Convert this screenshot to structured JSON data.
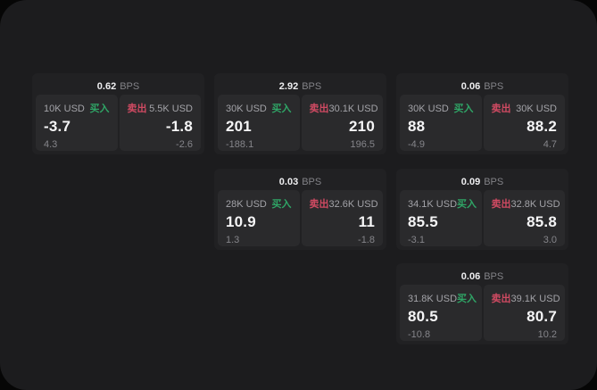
{
  "colors": {
    "buy_green": "#2fa566",
    "sell_red": "#cf4a62",
    "panel_background": "#1c1c1e",
    "card_background": "#212123",
    "tile_background": "#2a2a2c"
  },
  "cards": [
    {
      "bps_value": "0.62",
      "bps_unit": "BPS",
      "buy": {
        "amount": "10K USD",
        "label": "买入",
        "price": "-3.7",
        "delta": "4.3"
      },
      "sell": {
        "label": "卖出",
        "amount": "5.5K USD",
        "price": "-1.8",
        "delta": "-2.6"
      }
    },
    {
      "bps_value": "2.92",
      "bps_unit": "BPS",
      "buy": {
        "amount": "30K USD",
        "label": "买入",
        "price": "201",
        "delta": "-188.1"
      },
      "sell": {
        "label": "卖出",
        "amount": "30.1K USD",
        "price": "210",
        "delta": "196.5"
      }
    },
    {
      "bps_value": "0.06",
      "bps_unit": "BPS",
      "buy": {
        "amount": "30K USD",
        "label": "买入",
        "price": "88",
        "delta": "-4.9"
      },
      "sell": {
        "label": "卖出",
        "amount": "30K USD",
        "price": "88.2",
        "delta": "4.7"
      }
    },
    {
      "bps_value": "0.03",
      "bps_unit": "BPS",
      "buy": {
        "amount": "28K USD",
        "label": "买入",
        "price": "10.9",
        "delta": "1.3"
      },
      "sell": {
        "label": "卖出",
        "amount": "32.6K USD",
        "price": "11",
        "delta": "-1.8"
      }
    },
    {
      "bps_value": "0.09",
      "bps_unit": "BPS",
      "buy": {
        "amount": "34.1K USD",
        "label": "买入",
        "price": "85.5",
        "delta": "-3.1"
      },
      "sell": {
        "label": "卖出",
        "amount": "32.8K USD",
        "price": "85.8",
        "delta": "3.0"
      }
    },
    {
      "bps_value": "0.06",
      "bps_unit": "BPS",
      "buy": {
        "amount": "31.8K USD",
        "label": "买入",
        "price": "80.5",
        "delta": "-10.8"
      },
      "sell": {
        "label": "卖出",
        "amount": "39.1K USD",
        "price": "80.7",
        "delta": "10.2"
      }
    }
  ]
}
